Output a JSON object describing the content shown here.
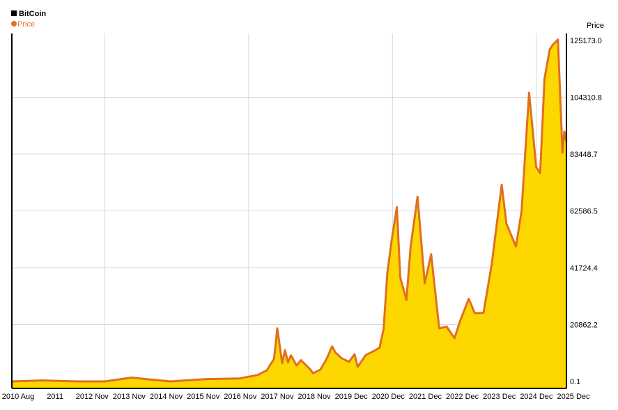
{
  "chart_data": {
    "type": "area",
    "title": "BitCoin",
    "series": [
      {
        "name": "Price",
        "color": "#e07020",
        "fill": "#ffd700",
        "points": [
          [
            "2010-08-01",
            0.1
          ],
          [
            "2011-06-01",
            200
          ],
          [
            "2012-06-01",
            150
          ],
          [
            "2013-03-01",
            300
          ],
          [
            "2013-12-01",
            1100
          ],
          [
            "2014-06-01",
            700
          ],
          [
            "2015-01-01",
            300
          ],
          [
            "2016-01-01",
            400
          ],
          [
            "2016-12-01",
            950
          ],
          [
            "2017-06-01",
            2500
          ],
          [
            "2017-09-01",
            4500
          ],
          [
            "2017-11-15",
            8000
          ],
          [
            "2017-12-17",
            19500
          ],
          [
            "2018-02-05",
            7000
          ],
          [
            "2018-03-05",
            11000
          ],
          [
            "2018-04-05",
            6800
          ],
          [
            "2018-05-05",
            9700
          ],
          [
            "2018-07-01",
            6300
          ],
          [
            "2018-08-15",
            7500
          ],
          [
            "2018-11-20",
            4300
          ],
          [
            "2018-12-15",
            3300
          ],
          [
            "2019-03-01",
            3900
          ],
          [
            "2019-05-01",
            8000
          ],
          [
            "2019-06-26",
            13000
          ],
          [
            "2019-08-01",
            11000
          ],
          [
            "2019-10-01",
            8200
          ],
          [
            "2019-12-15",
            7200
          ],
          [
            "2020-02-10",
            10300
          ],
          [
            "2020-03-12",
            4900
          ],
          [
            "2020-06-01",
            9500
          ],
          [
            "2020-09-01",
            11500
          ],
          [
            "2020-10-20",
            12800
          ],
          [
            "2020-12-01",
            19000
          ],
          [
            "2021-01-08",
            40000
          ],
          [
            "2021-02-20",
            52000
          ],
          [
            "2021-04-14",
            63500
          ],
          [
            "2021-05-19",
            38000
          ],
          [
            "2021-07-20",
            30000
          ],
          [
            "2021-09-01",
            50000
          ],
          [
            "2021-11-10",
            67500
          ],
          [
            "2022-01-22",
            36000
          ],
          [
            "2022-03-28",
            47000
          ],
          [
            "2022-06-18",
            19000
          ],
          [
            "2022-09-01",
            20000
          ],
          [
            "2022-11-20",
            16000
          ],
          [
            "2023-01-20",
            23000
          ],
          [
            "2023-04-14",
            30000
          ],
          [
            "2023-06-15",
            25000
          ],
          [
            "2023-09-11",
            25500
          ],
          [
            "2023-12-05",
            43000
          ],
          [
            "2024-03-14",
            72000
          ],
          [
            "2024-05-01",
            58000
          ],
          [
            "2024-08-05",
            50000
          ],
          [
            "2024-10-01",
            62000
          ],
          [
            "2024-12-17",
            106000
          ],
          [
            "2025-02-27",
            79000
          ],
          [
            "2025-04-08",
            76000
          ],
          [
            "2025-05-22",
            111000
          ],
          [
            "2025-07-14",
            122000
          ],
          [
            "2025-08-13",
            124000
          ],
          [
            "2025-10-06",
            125173.0
          ],
          [
            "2025-11-21",
            84000
          ],
          [
            "2025-12-10",
            92000
          ],
          [
            "2025-12-31",
            88000
          ]
        ]
      }
    ],
    "ylabel": "Price",
    "yticks": [
      "125173.0",
      "104310.8",
      "83448.7",
      "62586.5",
      "41724.4",
      "20862.2",
      "0.1"
    ],
    "ylim": [
      0.1,
      125173.0
    ],
    "xticks": [
      "2010 Aug",
      "2011",
      "2012 Nov",
      "2013 Nov",
      "2014 Nov",
      "2015 Nov",
      "2016 Nov",
      "2017 Nov",
      "2018 Nov",
      "2019 Dec",
      "2020 Dec",
      "2021 Dec",
      "2022 Dec",
      "2023 Dec",
      "2024 Dec",
      "2025 Dec"
    ],
    "xlim": [
      "2010-08-01",
      "2025-12-31"
    ],
    "grid": true,
    "legend_position": "top-left"
  }
}
